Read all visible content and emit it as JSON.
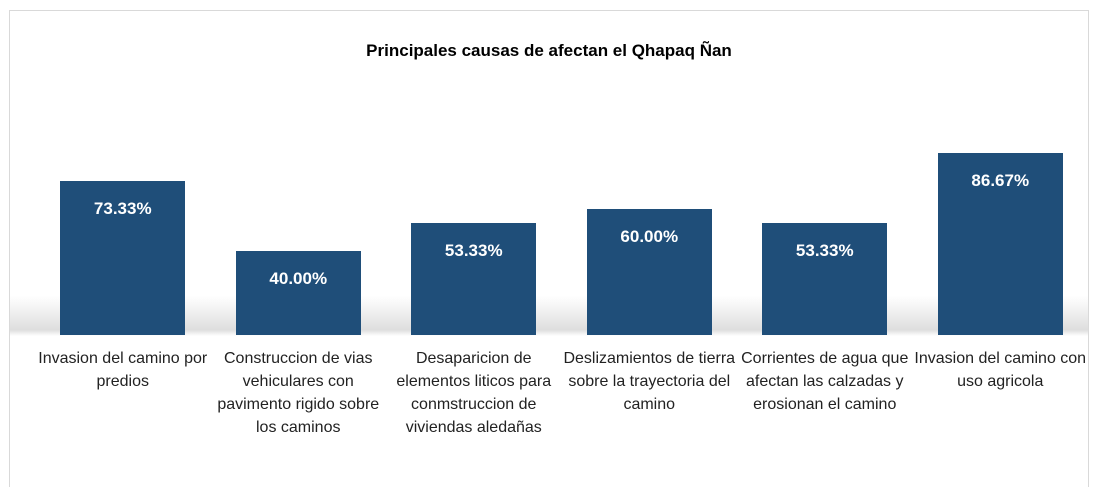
{
  "chart_data": {
    "type": "bar",
    "title": "Principales causas de afectan el Qhapaq Ñan",
    "categories": [
      "Invasion del camino por predios",
      "Construccion de vias vehiculares con pavimento rigido sobre los caminos",
      "Desaparicion de elementos liticos para conmstruccion de viviendas aledañas",
      "Deslizamientos de tierra sobre la trayectoria del camino",
      "Corrientes de agua que afectan las calzadas y erosionan el camino",
      "Invasion del camino con uso agricola"
    ],
    "values": [
      73.33,
      40.0,
      53.33,
      60.0,
      53.33,
      86.67
    ],
    "value_labels": [
      "73.33%",
      "40.00%",
      "53.33%",
      "60.00%",
      "53.33%",
      "86.67%"
    ],
    "color": "#1f4e79",
    "ylim": [
      0,
      100
    ]
  }
}
